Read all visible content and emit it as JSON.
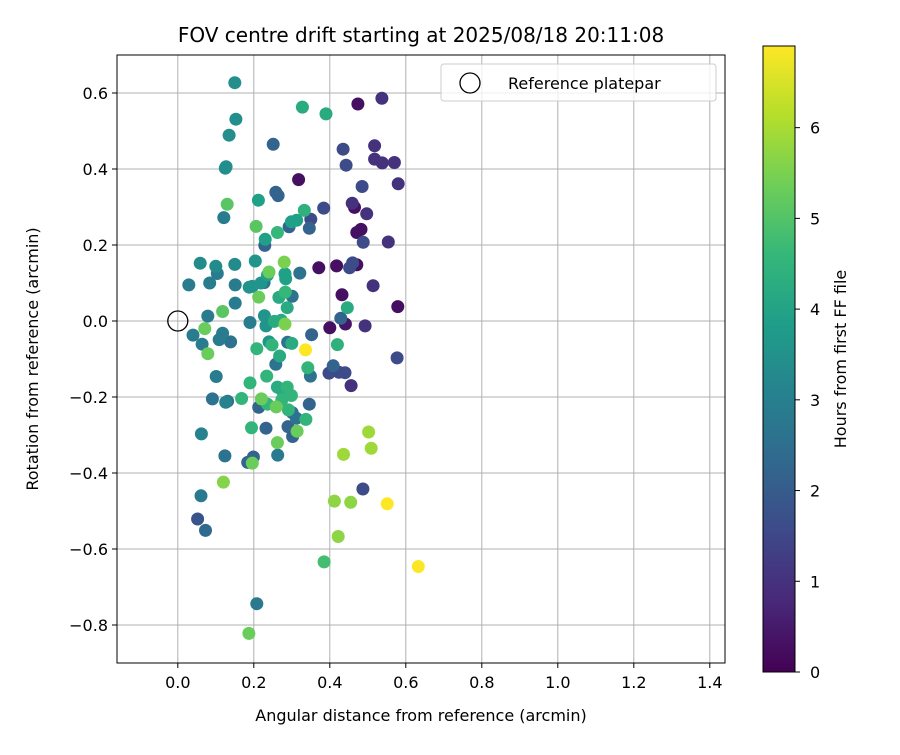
{
  "chart_data": {
    "type": "scatter",
    "title": "FOV centre drift starting at 2025/08/18 20:11:08",
    "xlabel": "Angular distance from reference (arcmin)",
    "ylabel": "Rotation from reference (arcmin)",
    "xlim": [
      -0.16,
      1.44
    ],
    "ylim": [
      -0.9,
      0.7
    ],
    "xticks": [
      0.0,
      0.2,
      0.4,
      0.6,
      0.8,
      1.0,
      1.2,
      1.4
    ],
    "xtick_labels": [
      "0.0",
      "0.2",
      "0.4",
      "0.6",
      "0.8",
      "1.0",
      "1.2",
      "1.4"
    ],
    "yticks": [
      -0.8,
      -0.6,
      -0.4,
      -0.2,
      0.0,
      0.2,
      0.4,
      0.6
    ],
    "ytick_labels": [
      "−0.8",
      "−0.6",
      "−0.4",
      "−0.2",
      "0.0",
      "0.2",
      "0.4",
      "0.6"
    ],
    "grid": true,
    "legend": {
      "placement": "top-right",
      "entries": [
        "Reference platepar"
      ]
    },
    "reference_point": {
      "x": 0.0,
      "y": 0.0
    },
    "colorbar": {
      "label": "Hours from first FF file",
      "colormap": "viridis",
      "range": [
        0,
        6.9
      ],
      "ticks": [
        0,
        1,
        2,
        3,
        4,
        5,
        6
      ],
      "tick_labels": [
        "0",
        "1",
        "2",
        "3",
        "4",
        "5",
        "6"
      ],
      "colors": [
        "#440154",
        "#482878",
        "#3e4989",
        "#31688e",
        "#26828e",
        "#1f9e89",
        "#35b779",
        "#6ece58",
        "#b5de2b",
        "#fde725"
      ]
    },
    "points": [
      {
        "x": 0.474,
        "y": 0.571,
        "hours": 0.3
      },
      {
        "x": 0.318,
        "y": 0.372,
        "hours": 0.3
      },
      {
        "x": 0.465,
        "y": 0.299,
        "hours": 0.3
      },
      {
        "x": 0.482,
        "y": 0.241,
        "hours": 0.3
      },
      {
        "x": 0.471,
        "y": 0.233,
        "hours": 0.3
      },
      {
        "x": 0.418,
        "y": 0.145,
        "hours": 0.3
      },
      {
        "x": 0.471,
        "y": 0.148,
        "hours": 0.3
      },
      {
        "x": 0.371,
        "y": 0.14,
        "hours": 0.3
      },
      {
        "x": 0.579,
        "y": 0.038,
        "hours": 0.3
      },
      {
        "x": 0.432,
        "y": 0.069,
        "hours": 0.3
      },
      {
        "x": 0.4,
        "y": -0.018,
        "hours": 0.3
      },
      {
        "x": 0.441,
        "y": -0.008,
        "hours": 0.4
      },
      {
        "x": 0.537,
        "y": 0.586,
        "hours": 1.0
      },
      {
        "x": 0.518,
        "y": 0.461,
        "hours": 1.0
      },
      {
        "x": 0.518,
        "y": 0.426,
        "hours": 1.0
      },
      {
        "x": 0.538,
        "y": 0.416,
        "hours": 1.0
      },
      {
        "x": 0.57,
        "y": 0.417,
        "hours": 1.0
      },
      {
        "x": 0.58,
        "y": 0.361,
        "hours": 1.0
      },
      {
        "x": 0.459,
        "y": 0.31,
        "hours": 1.0
      },
      {
        "x": 0.497,
        "y": 0.282,
        "hours": 1.0
      },
      {
        "x": 0.554,
        "y": 0.208,
        "hours": 1.0
      },
      {
        "x": 0.514,
        "y": 0.093,
        "hours": 1.0
      },
      {
        "x": 0.493,
        "y": -0.013,
        "hours": 1.0
      },
      {
        "x": 0.456,
        "y": -0.17,
        "hours": 1.0
      },
      {
        "x": 0.435,
        "y": 0.452,
        "hours": 1.6
      },
      {
        "x": 0.443,
        "y": 0.41,
        "hours": 1.6
      },
      {
        "x": 0.485,
        "y": 0.354,
        "hours": 1.6
      },
      {
        "x": 0.488,
        "y": 0.207,
        "hours": 1.6
      },
      {
        "x": 0.452,
        "y": 0.14,
        "hours": 1.6
      },
      {
        "x": 0.46,
        "y": 0.153,
        "hours": 1.6
      },
      {
        "x": 0.35,
        "y": 0.268,
        "hours": 1.6
      },
      {
        "x": 0.384,
        "y": 0.297,
        "hours": 1.6
      },
      {
        "x": 0.577,
        "y": -0.097,
        "hours": 1.6
      },
      {
        "x": 0.44,
        "y": -0.136,
        "hours": 1.6
      },
      {
        "x": 0.424,
        "y": -0.135,
        "hours": 1.6
      },
      {
        "x": 0.398,
        "y": -0.137,
        "hours": 1.6
      },
      {
        "x": 0.487,
        "y": -0.442,
        "hours": 1.6
      },
      {
        "x": 0.052,
        "y": -0.521,
        "hours": 1.8
      },
      {
        "x": 0.258,
        "y": 0.339,
        "hours": 2.2
      },
      {
        "x": 0.264,
        "y": 0.33,
        "hours": 2.2
      },
      {
        "x": 0.251,
        "y": 0.465,
        "hours": 2.2
      },
      {
        "x": 0.346,
        "y": 0.244,
        "hours": 2.2
      },
      {
        "x": 0.293,
        "y": 0.248,
        "hours": 2.2
      },
      {
        "x": 0.229,
        "y": 0.199,
        "hours": 2.2
      },
      {
        "x": 0.429,
        "y": 0.007,
        "hours": 2.2
      },
      {
        "x": 0.352,
        "y": -0.036,
        "hours": 2.2
      },
      {
        "x": 0.409,
        "y": -0.118,
        "hours": 2.2
      },
      {
        "x": 0.346,
        "y": -0.219,
        "hours": 2.2
      },
      {
        "x": 0.232,
        "y": -0.282,
        "hours": 2.2
      },
      {
        "x": 0.29,
        "y": -0.278,
        "hours": 2.2
      },
      {
        "x": 0.302,
        "y": -0.304,
        "hours": 2.2
      },
      {
        "x": 0.213,
        "y": -0.227,
        "hours": 2.2
      },
      {
        "x": 0.184,
        "y": -0.372,
        "hours": 2.2
      },
      {
        "x": 0.199,
        "y": -0.358,
        "hours": 2.2
      },
      {
        "x": 0.073,
        "y": -0.551,
        "hours": 2.4
      },
      {
        "x": 0.301,
        "y": 0.065,
        "hours": 2.6
      },
      {
        "x": 0.321,
        "y": 0.126,
        "hours": 2.6
      },
      {
        "x": 0.227,
        "y": 0.101,
        "hours": 2.6
      },
      {
        "x": 0.124,
        "y": -0.355,
        "hours": 2.6
      },
      {
        "x": 0.301,
        "y": -0.241,
        "hours": 2.6
      },
      {
        "x": 0.258,
        "y": -0.114,
        "hours": 2.6
      },
      {
        "x": 0.312,
        "y": -0.256,
        "hours": 2.6
      },
      {
        "x": 0.289,
        "y": -0.056,
        "hours": 2.6
      },
      {
        "x": 0.139,
        "y": -0.055,
        "hours": 2.6
      },
      {
        "x": 0.091,
        "y": -0.205,
        "hours": 2.6
      },
      {
        "x": 0.131,
        "y": -0.211,
        "hours": 2.6
      },
      {
        "x": 0.349,
        "y": -0.145,
        "hours": 2.6
      },
      {
        "x": 0.208,
        "y": -0.744,
        "hours": 2.8
      },
      {
        "x": 0.061,
        "y": -0.46,
        "hours": 2.8
      },
      {
        "x": 0.263,
        "y": -0.353,
        "hours": 2.8
      },
      {
        "x": 0.101,
        "y": -0.146,
        "hours": 2.9
      },
      {
        "x": 0.079,
        "y": 0.013,
        "hours": 2.9
      },
      {
        "x": 0.109,
        "y": -0.049,
        "hours": 2.9
      },
      {
        "x": 0.118,
        "y": -0.032,
        "hours": 2.9
      },
      {
        "x": 0.064,
        "y": -0.061,
        "hours": 2.9
      },
      {
        "x": 0.04,
        "y": -0.037,
        "hours": 2.9
      },
      {
        "x": 0.029,
        "y": 0.095,
        "hours": 2.9
      },
      {
        "x": 0.104,
        "y": 0.125,
        "hours": 2.9
      },
      {
        "x": 0.084,
        "y": 0.1,
        "hours": 2.9
      },
      {
        "x": 0.151,
        "y": 0.047,
        "hours": 2.9
      },
      {
        "x": 0.151,
        "y": 0.095,
        "hours": 2.9
      },
      {
        "x": 0.121,
        "y": 0.272,
        "hours": 2.9
      },
      {
        "x": 0.19,
        "y": -0.004,
        "hours": 2.9
      },
      {
        "x": 0.062,
        "y": -0.297,
        "hours": 3.1
      },
      {
        "x": 0.126,
        "y": -0.214,
        "hours": 3.1
      },
      {
        "x": 0.059,
        "y": 0.152,
        "hours": 3.3
      },
      {
        "x": 0.1,
        "y": 0.144,
        "hours": 3.3
      },
      {
        "x": 0.15,
        "y": 0.149,
        "hours": 3.3
      },
      {
        "x": 0.125,
        "y": 0.402,
        "hours": 3.4
      },
      {
        "x": 0.127,
        "y": 0.406,
        "hours": 3.4
      },
      {
        "x": 0.135,
        "y": 0.489,
        "hours": 3.4
      },
      {
        "x": 0.153,
        "y": 0.531,
        "hours": 3.4
      },
      {
        "x": 0.15,
        "y": 0.627,
        "hours": 3.4
      },
      {
        "x": 0.204,
        "y": 0.158,
        "hours": 3.6
      },
      {
        "x": 0.219,
        "y": 0.1,
        "hours": 3.6
      },
      {
        "x": 0.188,
        "y": 0.089,
        "hours": 3.6
      },
      {
        "x": 0.196,
        "y": 0.091,
        "hours": 3.6
      },
      {
        "x": 0.228,
        "y": 0.014,
        "hours": 3.6
      },
      {
        "x": 0.232,
        "y": -0.013,
        "hours": 3.6
      },
      {
        "x": 0.24,
        "y": -0.055,
        "hours": 3.6
      },
      {
        "x": 0.212,
        "y": 0.318,
        "hours": 3.9
      },
      {
        "x": 0.23,
        "y": 0.215,
        "hours": 3.9
      },
      {
        "x": 0.284,
        "y": 0.111,
        "hours": 3.9
      },
      {
        "x": 0.282,
        "y": 0.124,
        "hours": 3.9
      },
      {
        "x": 0.236,
        "y": 0.121,
        "hours": 3.9
      },
      {
        "x": 0.299,
        "y": 0.261,
        "hours": 3.9
      },
      {
        "x": 0.313,
        "y": 0.265,
        "hours": 3.9
      },
      {
        "x": 0.328,
        "y": 0.563,
        "hours": 4.2
      },
      {
        "x": 0.39,
        "y": 0.545,
        "hours": 4.2
      },
      {
        "x": 0.446,
        "y": 0.035,
        "hours": 4.2
      },
      {
        "x": 0.266,
        "y": 0.062,
        "hours": 4.2
      },
      {
        "x": 0.288,
        "y": 0.035,
        "hours": 4.2
      },
      {
        "x": 0.272,
        "y": 0.002,
        "hours": 4.2
      },
      {
        "x": 0.254,
        "y": -0.001,
        "hours": 4.2
      },
      {
        "x": 0.3,
        "y": -0.059,
        "hours": 4.2
      },
      {
        "x": 0.268,
        "y": -0.092,
        "hours": 4.2
      },
      {
        "x": 0.262,
        "y": -0.174,
        "hours": 4.2
      },
      {
        "x": 0.273,
        "y": -0.181,
        "hours": 4.2
      },
      {
        "x": 0.42,
        "y": -0.062,
        "hours": 4.4
      },
      {
        "x": 0.333,
        "y": 0.291,
        "hours": 4.4
      },
      {
        "x": 0.234,
        "y": -0.145,
        "hours": 4.5
      },
      {
        "x": 0.248,
        "y": -0.063,
        "hours": 4.5
      },
      {
        "x": 0.208,
        "y": -0.073,
        "hours": 4.5
      },
      {
        "x": 0.19,
        "y": -0.163,
        "hours": 4.5
      },
      {
        "x": 0.168,
        "y": -0.204,
        "hours": 4.5
      },
      {
        "x": 0.194,
        "y": -0.281,
        "hours": 4.5
      },
      {
        "x": 0.236,
        "y": -0.219,
        "hours": 4.5
      },
      {
        "x": 0.274,
        "y": -0.207,
        "hours": 4.5
      },
      {
        "x": 0.299,
        "y": -0.196,
        "hours": 4.5
      },
      {
        "x": 0.288,
        "y": -0.174,
        "hours": 4.5
      },
      {
        "x": 0.342,
        "y": -0.123,
        "hours": 4.5
      },
      {
        "x": 0.337,
        "y": -0.259,
        "hours": 4.5
      },
      {
        "x": 0.291,
        "y": -0.234,
        "hours": 4.5
      },
      {
        "x": 0.262,
        "y": 0.233,
        "hours": 4.6
      },
      {
        "x": 0.283,
        "y": 0.076,
        "hours": 4.6
      },
      {
        "x": 0.385,
        "y": -0.634,
        "hours": 4.8
      },
      {
        "x": 0.13,
        "y": 0.307,
        "hours": 5.1
      },
      {
        "x": 0.206,
        "y": 0.249,
        "hours": 5.1
      },
      {
        "x": 0.118,
        "y": 0.025,
        "hours": 5.1
      },
      {
        "x": 0.071,
        "y": -0.02,
        "hours": 5.3
      },
      {
        "x": 0.079,
        "y": -0.086,
        "hours": 5.3
      },
      {
        "x": 0.187,
        "y": -0.822,
        "hours": 5.3
      },
      {
        "x": 0.196,
        "y": -0.374,
        "hours": 5.3
      },
      {
        "x": 0.259,
        "y": -0.226,
        "hours": 5.3
      },
      {
        "x": 0.262,
        "y": -0.32,
        "hours": 5.3
      },
      {
        "x": 0.314,
        "y": -0.29,
        "hours": 5.3
      },
      {
        "x": 0.22,
        "y": -0.205,
        "hours": 5.3
      },
      {
        "x": 0.213,
        "y": 0.063,
        "hours": 5.3
      },
      {
        "x": 0.24,
        "y": 0.129,
        "hours": 5.3
      },
      {
        "x": 0.28,
        "y": 0.155,
        "hours": 5.5
      },
      {
        "x": 0.282,
        "y": -0.008,
        "hours": 5.5
      },
      {
        "x": 0.12,
        "y": -0.424,
        "hours": 5.6
      },
      {
        "x": 0.412,
        "y": -0.474,
        "hours": 5.7
      },
      {
        "x": 0.455,
        "y": -0.477,
        "hours": 5.7
      },
      {
        "x": 0.422,
        "y": -0.567,
        "hours": 5.7
      },
      {
        "x": 0.436,
        "y": -0.351,
        "hours": 5.9
      },
      {
        "x": 0.502,
        "y": -0.292,
        "hours": 5.9
      },
      {
        "x": 0.509,
        "y": -0.335,
        "hours": 5.9
      },
      {
        "x": 0.336,
        "y": -0.076,
        "hours": 6.9
      },
      {
        "x": 0.551,
        "y": -0.481,
        "hours": 6.9
      },
      {
        "x": 0.633,
        "y": -0.646,
        "hours": 6.9
      }
    ]
  }
}
